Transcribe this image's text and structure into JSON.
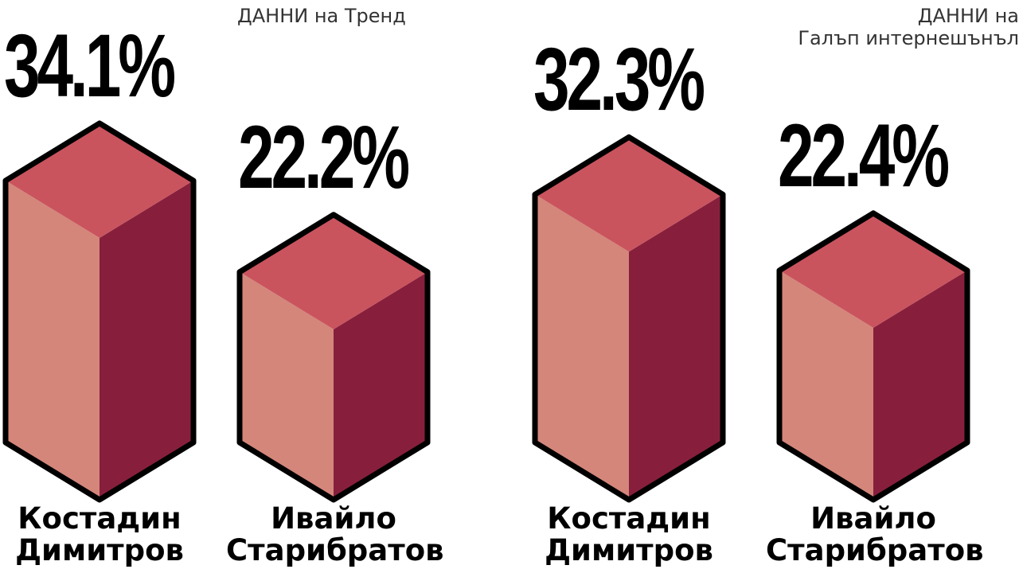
{
  "chart_data": [
    {
      "type": "bar",
      "title": "ДАННИ на Тренд",
      "categories": [
        [
          "Костадин",
          "Димитров"
        ],
        [
          "Ивайло",
          "Старибратов"
        ]
      ],
      "values": [
        34.1,
        22.2
      ],
      "value_labels": [
        "34.1%",
        "22.2%"
      ],
      "unit": "%",
      "colors": {
        "top": "#c9545e",
        "front": "#d4867b",
        "side": "#871f3c",
        "outline": "#000000"
      }
    },
    {
      "type": "bar",
      "title": [
        "ДАННИ на",
        "Галъп интернешънъл"
      ],
      "categories": [
        [
          "Костадин",
          "Димитров"
        ],
        [
          "Ивайло",
          "Старибратов"
        ]
      ],
      "values": [
        32.3,
        22.4
      ],
      "value_labels": [
        "32.3%",
        "22.4%"
      ],
      "unit": "%",
      "colors": {
        "top": "#c9545e",
        "front": "#d4867b",
        "side": "#871f3c",
        "outline": "#000000"
      }
    }
  ]
}
